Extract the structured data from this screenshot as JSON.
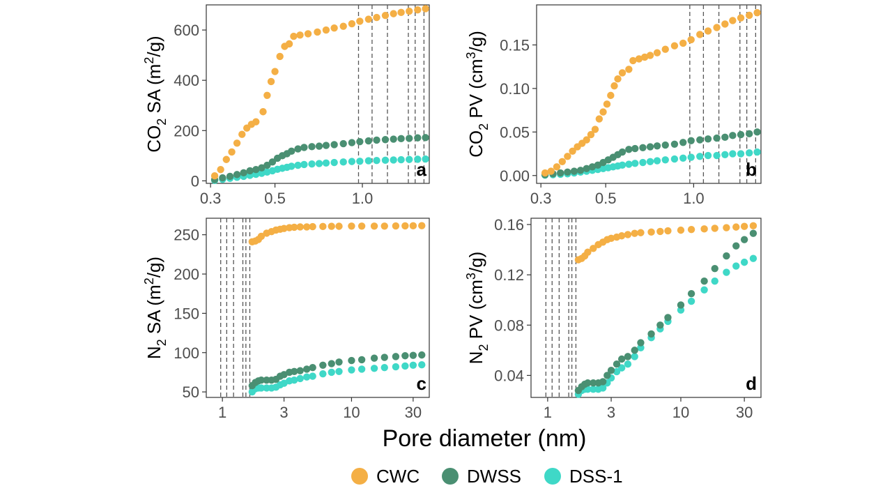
{
  "figure": {
    "xlabel": "Pore diameter (nm)",
    "legend": {
      "placement": "bottom",
      "items": [
        {
          "name": "CWC",
          "color": "#F4AF45"
        },
        {
          "name": "DWSS",
          "color": "#4A8F72"
        },
        {
          "name": "DSS-1",
          "color": "#3FD8C7"
        }
      ]
    }
  },
  "chart_data": [
    {
      "id": "a",
      "type": "scatter",
      "panel_label": "a",
      "ylabel": {
        "base": "CO",
        "sub": "2",
        "mid": " SA (m",
        "sup": "2",
        "end": "/g)"
      },
      "xscale": "log",
      "xlim": [
        0.29,
        1.7
      ],
      "ylim": [
        -10,
        700
      ],
      "xticks": [
        0.3,
        0.5,
        1.0
      ],
      "xtick_labels": [
        "0.3",
        "0.5",
        "1.0"
      ],
      "yticks": [
        0,
        200,
        400,
        600
      ],
      "ytick_labels": [
        "0",
        "200",
        "400",
        "600"
      ],
      "vlines": [
        0.97,
        1.08,
        1.22,
        1.44,
        1.52,
        1.63
      ],
      "grid": false,
      "series": [
        {
          "name": "CWC",
          "color": "#F4AF45",
          "x": [
            0.31,
            0.325,
            0.34,
            0.355,
            0.37,
            0.385,
            0.4,
            0.415,
            0.43,
            0.455,
            0.47,
            0.485,
            0.5,
            0.52,
            0.54,
            0.56,
            0.58,
            0.61,
            0.65,
            0.7,
            0.75,
            0.8,
            0.86,
            0.92,
            0.98,
            1.05,
            1.12,
            1.2,
            1.28,
            1.36,
            1.45,
            1.55,
            1.65
          ],
          "y": [
            20,
            45,
            85,
            115,
            150,
            185,
            210,
            225,
            235,
            275,
            340,
            395,
            435,
            495,
            535,
            545,
            575,
            580,
            585,
            592,
            600,
            608,
            615,
            625,
            635,
            643,
            650,
            658,
            665,
            670,
            675,
            680,
            685
          ]
        },
        {
          "name": "DWSS",
          "color": "#4A8F72",
          "x": [
            0.31,
            0.33,
            0.35,
            0.37,
            0.39,
            0.41,
            0.43,
            0.45,
            0.47,
            0.49,
            0.51,
            0.53,
            0.55,
            0.57,
            0.6,
            0.63,
            0.67,
            0.71,
            0.75,
            0.8,
            0.86,
            0.92,
            0.98,
            1.05,
            1.12,
            1.2,
            1.28,
            1.36,
            1.45,
            1.55,
            1.65
          ],
          "y": [
            5,
            12,
            18,
            25,
            32,
            40,
            45,
            52,
            62,
            75,
            90,
            100,
            108,
            118,
            127,
            133,
            136,
            138,
            141,
            144,
            148,
            152,
            156,
            159,
            162,
            164,
            166,
            168,
            169,
            171,
            172
          ]
        },
        {
          "name": "DSS-1",
          "color": "#3FD8C7",
          "x": [
            0.31,
            0.33,
            0.35,
            0.37,
            0.39,
            0.41,
            0.43,
            0.45,
            0.47,
            0.49,
            0.51,
            0.53,
            0.55,
            0.57,
            0.6,
            0.63,
            0.67,
            0.71,
            0.75,
            0.8,
            0.86,
            0.92,
            0.98,
            1.05,
            1.12,
            1.2,
            1.28,
            1.36,
            1.45,
            1.55,
            1.65
          ],
          "y": [
            2,
            6,
            10,
            14,
            18,
            22,
            26,
            30,
            35,
            40,
            46,
            50,
            54,
            58,
            62,
            65,
            67,
            69,
            71,
            73,
            75,
            77,
            78,
            80,
            81,
            82,
            83,
            84,
            85,
            86,
            87
          ]
        }
      ]
    },
    {
      "id": "b",
      "type": "scatter",
      "panel_label": "b",
      "ylabel": {
        "base": "CO",
        "sub": "2",
        "mid": " PV (cm",
        "sup": "3",
        "end": "/g)"
      },
      "xscale": "log",
      "xlim": [
        0.29,
        1.7
      ],
      "ylim": [
        -0.009,
        0.196
      ],
      "xticks": [
        0.3,
        0.5,
        1.0
      ],
      "xtick_labels": [
        "0.3",
        "0.5",
        "1.0"
      ],
      "yticks": [
        0,
        0.05,
        0.1,
        0.15
      ],
      "ytick_labels": [
        "0.00",
        "0.05",
        "0.10",
        "0.15"
      ],
      "vlines": [
        0.97,
        1.08,
        1.22,
        1.44,
        1.52,
        1.63
      ],
      "grid": false,
      "series": [
        {
          "name": "CWC",
          "color": "#F4AF45",
          "x": [
            0.31,
            0.325,
            0.34,
            0.355,
            0.37,
            0.385,
            0.4,
            0.415,
            0.43,
            0.445,
            0.46,
            0.475,
            0.49,
            0.505,
            0.52,
            0.535,
            0.55,
            0.57,
            0.6,
            0.62,
            0.65,
            0.68,
            0.71,
            0.75,
            0.8,
            0.86,
            0.92,
            0.98,
            1.05,
            1.12,
            1.2,
            1.28,
            1.36,
            1.45,
            1.55,
            1.65
          ],
          "y": [
            0.003,
            0.005,
            0.01,
            0.016,
            0.022,
            0.028,
            0.033,
            0.037,
            0.041,
            0.047,
            0.053,
            0.065,
            0.073,
            0.082,
            0.092,
            0.103,
            0.111,
            0.118,
            0.122,
            0.132,
            0.134,
            0.136,
            0.138,
            0.141,
            0.145,
            0.149,
            0.152,
            0.156,
            0.162,
            0.166,
            0.17,
            0.174,
            0.178,
            0.181,
            0.184,
            0.187
          ]
        },
        {
          "name": "DWSS",
          "color": "#4A8F72",
          "x": [
            0.31,
            0.33,
            0.35,
            0.37,
            0.39,
            0.41,
            0.43,
            0.45,
            0.47,
            0.49,
            0.51,
            0.53,
            0.55,
            0.57,
            0.6,
            0.63,
            0.67,
            0.71,
            0.75,
            0.8,
            0.86,
            0.92,
            0.98,
            1.05,
            1.12,
            1.2,
            1.28,
            1.36,
            1.45,
            1.55,
            1.65
          ],
          "y": [
            0.001,
            0.002,
            0.003,
            0.004,
            0.005,
            0.006,
            0.008,
            0.01,
            0.012,
            0.015,
            0.018,
            0.021,
            0.024,
            0.027,
            0.03,
            0.031,
            0.032,
            0.033,
            0.034,
            0.035,
            0.036,
            0.038,
            0.04,
            0.041,
            0.042,
            0.043,
            0.044,
            0.046,
            0.047,
            0.048,
            0.05
          ]
        },
        {
          "name": "DSS-1",
          "color": "#3FD8C7",
          "x": [
            0.31,
            0.33,
            0.35,
            0.37,
            0.39,
            0.41,
            0.43,
            0.45,
            0.47,
            0.49,
            0.51,
            0.53,
            0.55,
            0.57,
            0.6,
            0.63,
            0.67,
            0.71,
            0.75,
            0.8,
            0.86,
            0.92,
            0.98,
            1.05,
            1.12,
            1.2,
            1.28,
            1.36,
            1.45,
            1.55,
            1.65
          ],
          "y": [
            0.0005,
            0.001,
            0.0015,
            0.002,
            0.003,
            0.004,
            0.005,
            0.006,
            0.007,
            0.008,
            0.009,
            0.01,
            0.011,
            0.012,
            0.013,
            0.014,
            0.015,
            0.016,
            0.017,
            0.018,
            0.019,
            0.02,
            0.021,
            0.022,
            0.023,
            0.023,
            0.024,
            0.025,
            0.025,
            0.026,
            0.027
          ]
        }
      ]
    },
    {
      "id": "c",
      "type": "scatter",
      "panel_label": "c",
      "ylabel": {
        "base": "N",
        "sub": "2",
        "mid": " SA (m",
        "sup": "2",
        "end": "/g)"
      },
      "xscale": "log",
      "xlim": [
        0.75,
        40
      ],
      "ylim": [
        43,
        271
      ],
      "xticks": [
        1,
        3,
        10,
        30
      ],
      "xtick_labels": [
        "1",
        "3",
        "10",
        "30"
      ],
      "yticks": [
        50,
        100,
        150,
        200,
        250
      ],
      "ytick_labels": [
        "50",
        "100",
        "150",
        "200",
        "250"
      ],
      "vlines": [
        0.97,
        1.08,
        1.22,
        1.44,
        1.52,
        1.63
      ],
      "grid": false,
      "series": [
        {
          "name": "CWC",
          "color": "#F4AF45",
          "x": [
            1.7,
            1.8,
            1.9,
            2.0,
            2.2,
            2.4,
            2.6,
            2.8,
            3.0,
            3.3,
            3.6,
            4.0,
            4.5,
            5,
            6,
            7,
            8,
            10,
            12,
            15,
            18,
            22,
            26,
            30,
            35
          ],
          "y": [
            241,
            242,
            244,
            248,
            252,
            254,
            256,
            257,
            258,
            259,
            259.5,
            260,
            260,
            260.3,
            260.5,
            260.7,
            260.8,
            261,
            261,
            261,
            261,
            261.2,
            261.3,
            261.4,
            261.5
          ]
        },
        {
          "name": "DWSS",
          "color": "#4A8F72",
          "x": [
            1.7,
            1.8,
            1.9,
            2.0,
            2.2,
            2.4,
            2.6,
            2.8,
            3.0,
            3.3,
            3.6,
            4.0,
            4.5,
            5,
            6,
            7,
            8,
            10,
            12,
            15,
            18,
            22,
            26,
            30,
            35
          ],
          "y": [
            58,
            62,
            64,
            65,
            65,
            65,
            66,
            70,
            72,
            75,
            76,
            77,
            79,
            81,
            84,
            86,
            88,
            90,
            91,
            93,
            94,
            95,
            96,
            96.5,
            97
          ]
        },
        {
          "name": "DSS-1",
          "color": "#3FD8C7",
          "x": [
            1.7,
            1.8,
            1.9,
            2.0,
            2.2,
            2.4,
            2.6,
            2.8,
            3.0,
            3.3,
            3.6,
            4.0,
            4.5,
            5,
            6,
            7,
            8,
            10,
            12,
            15,
            18,
            22,
            26,
            30,
            35
          ],
          "y": [
            50,
            54,
            55,
            55,
            55,
            55,
            56,
            59,
            61,
            64,
            65,
            67,
            69,
            70,
            73,
            75,
            76,
            78,
            79,
            80,
            81,
            82,
            83,
            84,
            84.5
          ]
        }
      ]
    },
    {
      "id": "d",
      "type": "scatter",
      "panel_label": "d",
      "ylabel": {
        "base": "N",
        "sub": "2",
        "mid": " PV (cm",
        "sup": "3",
        "end": "/g)"
      },
      "xscale": "log",
      "xlim": [
        0.75,
        40
      ],
      "ylim": [
        0.0225,
        0.165
      ],
      "xticks": [
        1,
        3,
        10,
        30
      ],
      "xtick_labels": [
        "1",
        "3",
        "10",
        "30"
      ],
      "yticks": [
        0.04,
        0.08,
        0.12,
        0.16
      ],
      "ytick_labels": [
        "0.04",
        "0.08",
        "0.12",
        "0.16"
      ],
      "vlines": [
        0.97,
        1.08,
        1.22,
        1.44,
        1.52,
        1.63
      ],
      "grid": false,
      "series": [
        {
          "name": "CWC",
          "color": "#F4AF45",
          "x": [
            1.7,
            1.8,
            1.9,
            2.0,
            2.2,
            2.4,
            2.6,
            2.8,
            3.0,
            3.3,
            3.6,
            4.0,
            4.5,
            5,
            6,
            7,
            8,
            10,
            12,
            15,
            18,
            22,
            26,
            30,
            35
          ],
          "y": [
            0.132,
            0.133,
            0.135,
            0.138,
            0.141,
            0.144,
            0.146,
            0.148,
            0.149,
            0.15,
            0.151,
            0.152,
            0.153,
            0.1535,
            0.154,
            0.1545,
            0.155,
            0.1555,
            0.156,
            0.1565,
            0.157,
            0.1575,
            0.158,
            0.1585,
            0.159
          ]
        },
        {
          "name": "DWSS",
          "color": "#4A8F72",
          "x": [
            1.7,
            1.8,
            1.9,
            2.0,
            2.2,
            2.4,
            2.6,
            2.8,
            3.0,
            3.3,
            3.6,
            4.0,
            4.5,
            5,
            6,
            7,
            8,
            10,
            12,
            15,
            18,
            22,
            26,
            30,
            35
          ],
          "y": [
            0.028,
            0.031,
            0.033,
            0.034,
            0.034,
            0.034,
            0.035,
            0.04,
            0.044,
            0.049,
            0.053,
            0.055,
            0.06,
            0.066,
            0.073,
            0.08,
            0.086,
            0.096,
            0.105,
            0.115,
            0.125,
            0.135,
            0.143,
            0.148,
            0.153
          ]
        },
        {
          "name": "DSS-1",
          "color": "#3FD8C7",
          "x": [
            1.7,
            1.8,
            1.9,
            2.0,
            2.2,
            2.4,
            2.6,
            2.8,
            3.0,
            3.3,
            3.6,
            4.0,
            4.5,
            5,
            6,
            7,
            8,
            10,
            12,
            15,
            18,
            22,
            26,
            30,
            35
          ],
          "y": [
            0.025,
            0.028,
            0.029,
            0.029,
            0.029,
            0.029,
            0.03,
            0.034,
            0.038,
            0.043,
            0.046,
            0.049,
            0.055,
            0.062,
            0.07,
            0.077,
            0.083,
            0.092,
            0.099,
            0.108,
            0.115,
            0.122,
            0.127,
            0.13,
            0.133
          ]
        }
      ]
    }
  ]
}
